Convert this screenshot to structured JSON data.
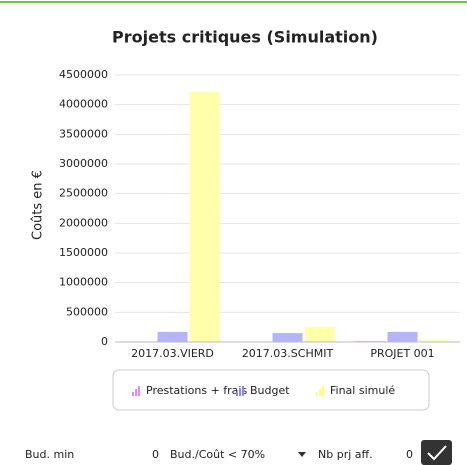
{
  "chart_data": {
    "type": "bar",
    "title": "Projets critiques (Simulation)",
    "y_label": "Coûts en €",
    "categories": [
      "2017.03.VIERD",
      "2017.03.SCHMIT",
      "PROJET 001"
    ],
    "series": [
      {
        "name": "Prestations + frais",
        "color": "#f2c4f2",
        "legend_color": "#ee88ee",
        "values": [
          10000,
          5000,
          20000
        ]
      },
      {
        "name": "Budget",
        "color": "#b4b4f6",
        "legend_color": "#8888ee",
        "values": [
          170000,
          150000,
          170000
        ]
      },
      {
        "name": "Final simulé",
        "color": "#ffffaa",
        "legend_color": "#ffff77",
        "values": [
          4220000,
          260000,
          30000
        ]
      }
    ],
    "ylim": [
      0,
      4500000
    ],
    "yticks": [
      0,
      500000,
      1000000,
      1500000,
      2000000,
      2500000,
      3000000,
      3500000,
      4000000,
      4500000
    ],
    "grid": true,
    "legend": "bottom"
  },
  "controls": {
    "bud_min_label": "Bud. min",
    "bud_min_value": "0",
    "ratio_select": "Bud./Coût < 70%",
    "nb_label": "Nb prj aff.",
    "nb_value": "0"
  }
}
